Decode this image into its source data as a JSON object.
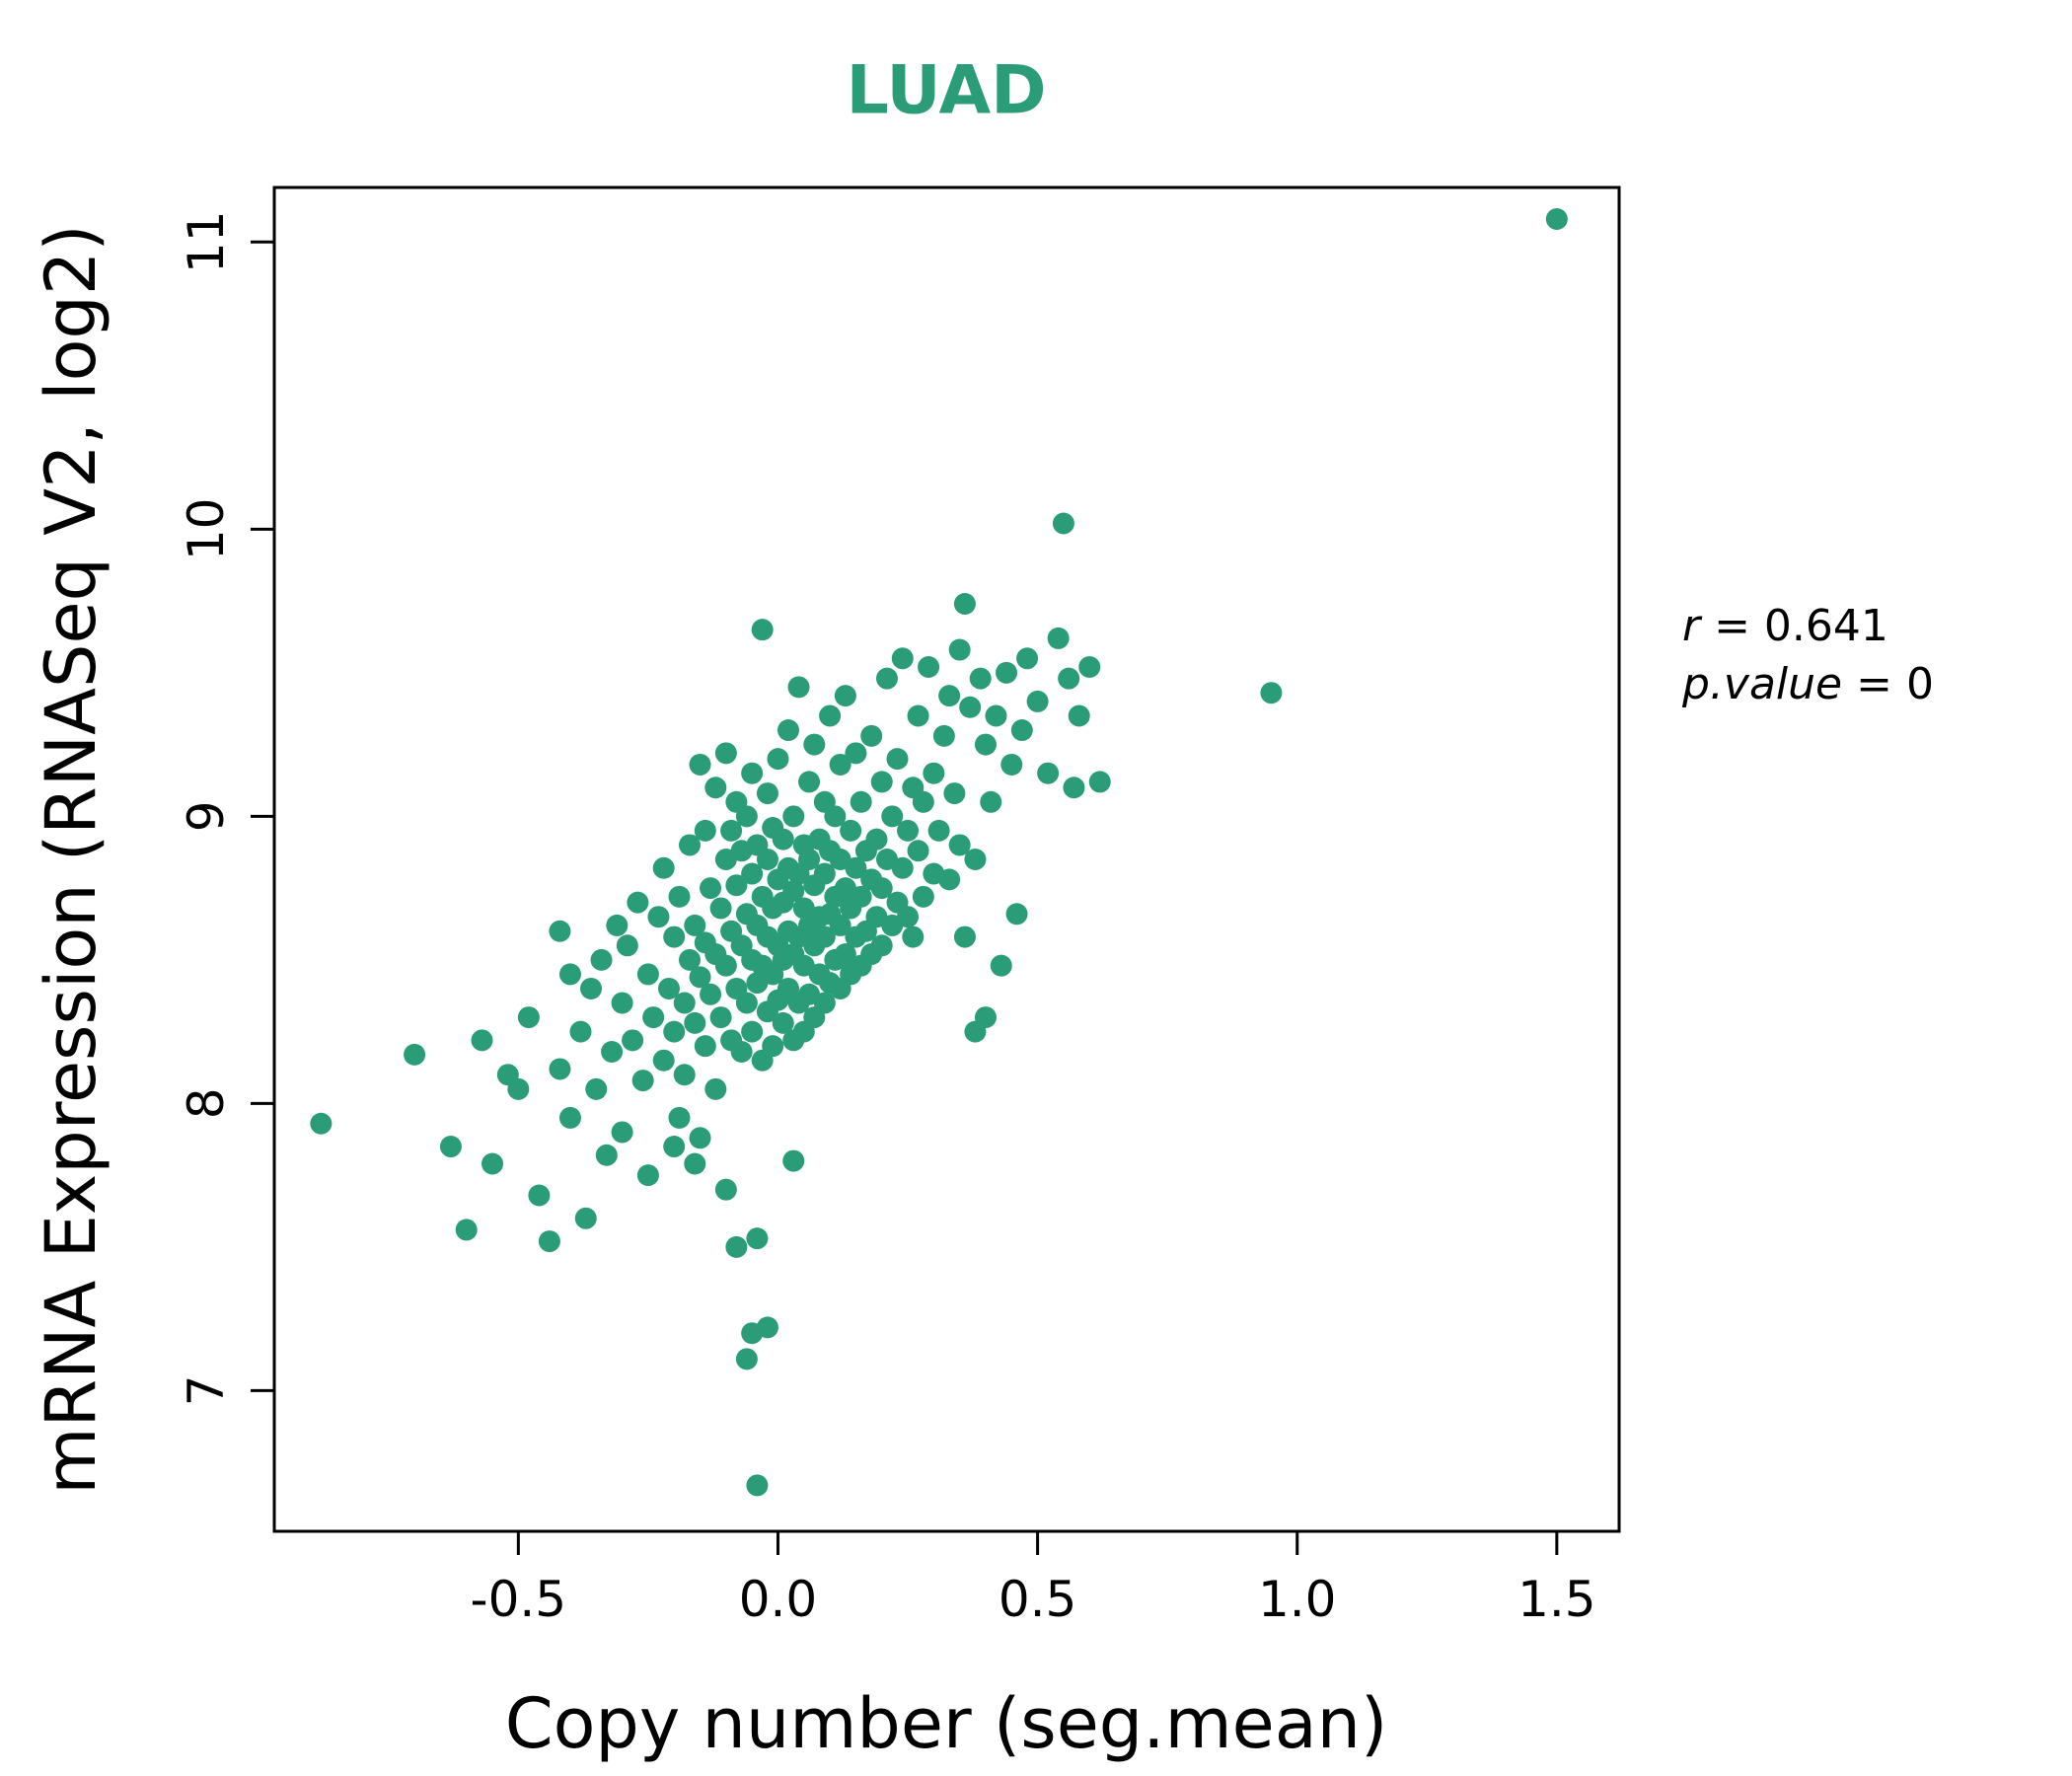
{
  "colors": {
    "accent": "#2a9d78",
    "axis": "#000000",
    "background": "#ffffff"
  },
  "annotation": {
    "r_var": "r",
    "r_eq": " = 0.641",
    "p_var": "p.value",
    "p_eq": " = 0"
  },
  "chart_data": {
    "type": "scatter",
    "title": "LUAD",
    "xlabel": "Copy number (seg.mean)",
    "ylabel": "mRNA Expression (RNASeq V2, log2)",
    "xlim": [
      -0.97,
      1.62
    ],
    "ylim": [
      6.51,
      11.19
    ],
    "x_ticks": [
      -0.5,
      0.0,
      0.5,
      1.0,
      1.5
    ],
    "y_ticks": [
      7,
      8,
      9,
      10,
      11
    ],
    "grid": false,
    "legend": "none",
    "point_color": "#2a9d78",
    "annotations": [
      "r = 0.641",
      "p.value = 0"
    ],
    "points": [
      [
        -0.88,
        7.93
      ],
      [
        -0.7,
        8.17
      ],
      [
        -0.63,
        7.85
      ],
      [
        -0.6,
        7.56
      ],
      [
        -0.57,
        8.22
      ],
      [
        -0.55,
        7.79
      ],
      [
        -0.52,
        8.1
      ],
      [
        -0.5,
        8.05
      ],
      [
        -0.48,
        8.3
      ],
      [
        -0.46,
        7.68
      ],
      [
        -0.44,
        7.52
      ],
      [
        -0.42,
        8.6
      ],
      [
        -0.42,
        8.12
      ],
      [
        -0.4,
        8.45
      ],
      [
        -0.4,
        7.95
      ],
      [
        -0.38,
        8.25
      ],
      [
        -0.37,
        7.6
      ],
      [
        -0.36,
        8.4
      ],
      [
        -0.35,
        8.05
      ],
      [
        -0.34,
        8.5
      ],
      [
        -0.33,
        7.82
      ],
      [
        -0.32,
        8.18
      ],
      [
        -0.31,
        8.62
      ],
      [
        -0.3,
        8.35
      ],
      [
        -0.3,
        7.9
      ],
      [
        -0.29,
        8.55
      ],
      [
        -0.28,
        8.22
      ],
      [
        -0.27,
        8.7
      ],
      [
        -0.26,
        8.08
      ],
      [
        -0.25,
        8.45
      ],
      [
        -0.25,
        7.75
      ],
      [
        -0.24,
        8.3
      ],
      [
        -0.23,
        8.65
      ],
      [
        -0.22,
        8.15
      ],
      [
        -0.22,
        8.82
      ],
      [
        -0.21,
        8.4
      ],
      [
        -0.2,
        8.25
      ],
      [
        -0.2,
        8.58
      ],
      [
        -0.19,
        7.95
      ],
      [
        -0.19,
        8.72
      ],
      [
        -0.18,
        8.35
      ],
      [
        -0.18,
        8.1
      ],
      [
        -0.17,
        8.5
      ],
      [
        -0.17,
        8.9
      ],
      [
        -0.16,
        8.28
      ],
      [
        -0.16,
        8.62
      ],
      [
        -0.15,
        7.88
      ],
      [
        -0.15,
        8.44
      ],
      [
        -0.15,
        9.18
      ],
      [
        -0.14,
        8.2
      ],
      [
        -0.14,
        8.56
      ],
      [
        -0.14,
        8.95
      ],
      [
        -0.13,
        8.38
      ],
      [
        -0.13,
        8.75
      ],
      [
        -0.12,
        8.05
      ],
      [
        -0.12,
        8.52
      ],
      [
        -0.12,
        9.1
      ],
      [
        -0.08,
        7.5
      ],
      [
        -0.06,
        7.11
      ],
      [
        -0.05,
        7.2
      ],
      [
        -0.02,
        7.22
      ],
      [
        -0.04,
        6.67
      ],
      [
        -0.04,
        7.53
      ],
      [
        0.03,
        7.8
      ],
      [
        -0.1,
        7.7
      ],
      [
        -0.16,
        7.79
      ],
      [
        -0.2,
        7.85
      ],
      [
        -0.11,
        8.3
      ],
      [
        -0.11,
        8.68
      ],
      [
        -0.1,
        8.48
      ],
      [
        -0.1,
        8.85
      ],
      [
        -0.1,
        9.22
      ],
      [
        -0.09,
        8.22
      ],
      [
        -0.09,
        8.6
      ],
      [
        -0.09,
        8.95
      ],
      [
        -0.08,
        8.4
      ],
      [
        -0.08,
        8.76
      ],
      [
        -0.08,
        9.05
      ],
      [
        -0.07,
        8.18
      ],
      [
        -0.07,
        8.55
      ],
      [
        -0.07,
        8.88
      ],
      [
        -0.06,
        8.35
      ],
      [
        -0.06,
        8.66
      ],
      [
        -0.06,
        9.0
      ],
      [
        -0.05,
        8.25
      ],
      [
        -0.05,
        8.5
      ],
      [
        -0.05,
        8.8
      ],
      [
        -0.05,
        9.15
      ],
      [
        -0.04,
        8.42
      ],
      [
        -0.04,
        8.62
      ],
      [
        -0.04,
        8.9
      ],
      [
        -0.03,
        8.15
      ],
      [
        -0.03,
        8.48
      ],
      [
        -0.03,
        8.72
      ],
      [
        -0.03,
        9.65
      ],
      [
        -0.02,
        8.32
      ],
      [
        -0.02,
        8.58
      ],
      [
        -0.02,
        8.85
      ],
      [
        -0.02,
        9.08
      ],
      [
        -0.01,
        8.2
      ],
      [
        -0.01,
        8.45
      ],
      [
        -0.01,
        8.68
      ],
      [
        -0.01,
        8.96
      ],
      [
        0.0,
        8.36
      ],
      [
        0.0,
        8.55
      ],
      [
        0.0,
        8.78
      ],
      [
        0.0,
        9.2
      ],
      [
        0.01,
        8.28
      ],
      [
        0.01,
        8.5
      ],
      [
        0.01,
        8.7
      ],
      [
        0.01,
        8.92
      ],
      [
        0.02,
        8.4
      ],
      [
        0.02,
        8.6
      ],
      [
        0.02,
        8.82
      ],
      [
        0.02,
        9.3
      ],
      [
        0.03,
        8.22
      ],
      [
        0.03,
        8.52
      ],
      [
        0.03,
        8.74
      ],
      [
        0.03,
        9.0
      ],
      [
        0.04,
        8.35
      ],
      [
        0.04,
        8.58
      ],
      [
        0.04,
        8.8
      ],
      [
        0.04,
        9.45
      ],
      [
        0.05,
        8.25
      ],
      [
        0.05,
        8.48
      ],
      [
        0.05,
        8.68
      ],
      [
        0.05,
        8.9
      ],
      [
        0.06,
        8.38
      ],
      [
        0.06,
        8.62
      ],
      [
        0.06,
        8.85
      ],
      [
        0.06,
        9.12
      ],
      [
        0.07,
        8.3
      ],
      [
        0.07,
        8.55
      ],
      [
        0.07,
        8.76
      ],
      [
        0.07,
        9.25
      ],
      [
        0.08,
        8.45
      ],
      [
        0.08,
        8.65
      ],
      [
        0.08,
        8.92
      ],
      [
        0.09,
        8.35
      ],
      [
        0.09,
        8.58
      ],
      [
        0.09,
        8.8
      ],
      [
        0.09,
        9.05
      ],
      [
        0.1,
        8.42
      ],
      [
        0.1,
        8.66
      ],
      [
        0.1,
        8.88
      ],
      [
        0.1,
        9.35
      ],
      [
        0.11,
        8.5
      ],
      [
        0.11,
        8.72
      ],
      [
        0.11,
        9.0
      ],
      [
        0.12,
        8.4
      ],
      [
        0.12,
        8.62
      ],
      [
        0.12,
        8.85
      ],
      [
        0.12,
        9.18
      ],
      [
        0.13,
        8.52
      ],
      [
        0.13,
        8.75
      ],
      [
        0.13,
        9.42
      ],
      [
        0.14,
        8.45
      ],
      [
        0.14,
        8.68
      ],
      [
        0.14,
        8.95
      ],
      [
        0.15,
        8.58
      ],
      [
        0.15,
        8.82
      ],
      [
        0.15,
        9.22
      ],
      [
        0.16,
        8.48
      ],
      [
        0.16,
        8.72
      ],
      [
        0.16,
        9.05
      ],
      [
        0.17,
        8.6
      ],
      [
        0.17,
        8.88
      ],
      [
        0.18,
        8.52
      ],
      [
        0.18,
        8.78
      ],
      [
        0.18,
        9.28
      ],
      [
        0.19,
        8.65
      ],
      [
        0.19,
        8.92
      ],
      [
        0.2,
        8.55
      ],
      [
        0.2,
        8.75
      ],
      [
        0.2,
        9.12
      ],
      [
        0.21,
        8.85
      ],
      [
        0.21,
        9.48
      ],
      [
        0.22,
        8.62
      ],
      [
        0.22,
        9.0
      ],
      [
        0.23,
        8.7
      ],
      [
        0.23,
        9.2
      ],
      [
        0.24,
        8.82
      ],
      [
        0.24,
        9.55
      ],
      [
        0.25,
        8.65
      ],
      [
        0.25,
        8.95
      ],
      [
        0.26,
        9.1
      ],
      [
        0.26,
        8.58
      ],
      [
        0.27,
        8.88
      ],
      [
        0.27,
        9.35
      ],
      [
        0.28,
        8.72
      ],
      [
        0.28,
        9.05
      ],
      [
        0.29,
        9.52
      ],
      [
        0.3,
        8.8
      ],
      [
        0.3,
        9.15
      ],
      [
        0.31,
        8.95
      ],
      [
        0.32,
        9.28
      ],
      [
        0.33,
        8.78
      ],
      [
        0.33,
        9.42
      ],
      [
        0.34,
        9.08
      ],
      [
        0.35,
        8.9
      ],
      [
        0.35,
        9.58
      ],
      [
        0.36,
        9.74
      ],
      [
        0.36,
        8.58
      ],
      [
        0.37,
        9.38
      ],
      [
        0.38,
        8.85
      ],
      [
        0.38,
        8.25
      ],
      [
        0.39,
        9.48
      ],
      [
        0.4,
        8.3
      ],
      [
        0.4,
        9.25
      ],
      [
        0.41,
        9.05
      ],
      [
        0.42,
        9.35
      ],
      [
        0.43,
        8.48
      ],
      [
        0.44,
        9.5
      ],
      [
        0.45,
        9.18
      ],
      [
        0.46,
        8.66
      ],
      [
        0.47,
        9.3
      ],
      [
        0.48,
        9.55
      ],
      [
        0.5,
        9.4
      ],
      [
        0.52,
        9.15
      ],
      [
        0.54,
        9.62
      ],
      [
        0.55,
        10.02
      ],
      [
        0.56,
        9.48
      ],
      [
        0.57,
        9.1
      ],
      [
        0.58,
        9.35
      ],
      [
        0.6,
        9.52
      ],
      [
        0.62,
        9.12
      ],
      [
        0.95,
        9.43
      ],
      [
        1.5,
        11.08
      ]
    ]
  }
}
